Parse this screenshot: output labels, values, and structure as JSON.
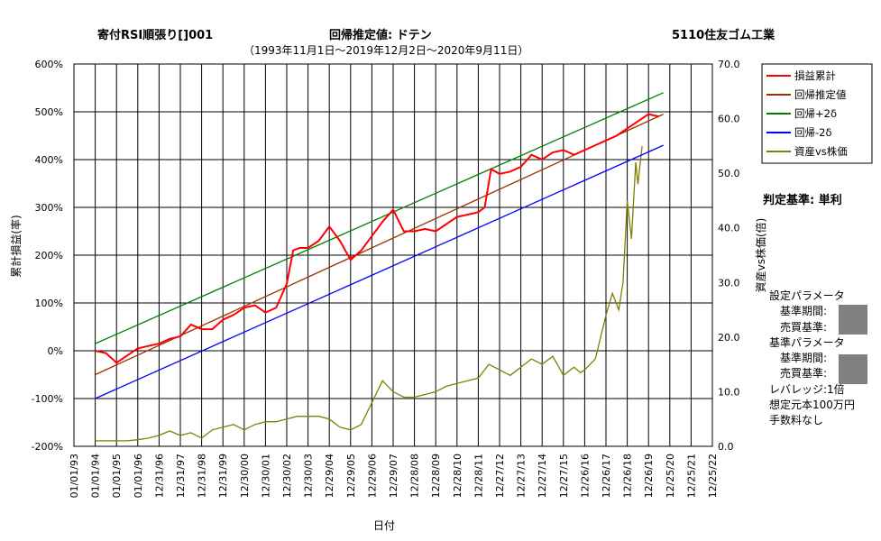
{
  "header": {
    "title_left": "寄付RSI順張り[]001",
    "title_center": "回帰推定値: ドテン",
    "title_right": "5110住友ゴム工業",
    "subtitle": "（1993年11月1日～2019年12月2日～2020年9月11日）"
  },
  "side_panel": {
    "judge": "判定基準: 単利",
    "setting_params": "設定パラメータ",
    "base_period_1": "基準期間:",
    "trade_base_1": "売買基準:",
    "base_params": "基準パラメータ",
    "base_period_2": "基準期間:",
    "trade_base_2": "売買基準:",
    "leverage": "レバレッジ:1倍",
    "principal": "想定元本100万円",
    "fee": "手数料なし"
  },
  "chart_data": {
    "type": "line",
    "xlabel": "日付",
    "ylabel_left": "累計損益(率)",
    "ylabel_right": "資産vs株価(倍)",
    "y_left_ticks": [
      "600%",
      "500%",
      "400%",
      "300%",
      "200%",
      "100%",
      "0%",
      "-100%",
      "-200%"
    ],
    "y_left_range": [
      -200,
      600
    ],
    "y_right_ticks": [
      "70.0",
      "60.0",
      "50.0",
      "40.0",
      "30.0",
      "20.0",
      "10.0",
      "0.0"
    ],
    "y_right_range": [
      0,
      70
    ],
    "x_ticks": [
      "01/01/93",
      "01/01/94",
      "01/01/95",
      "01/01/96",
      "12/31/96",
      "12/31/97",
      "12/31/98",
      "12/31/99",
      "12/30/00",
      "12/30/01",
      "12/30/02",
      "12/30/03",
      "12/29/04",
      "12/29/05",
      "12/29/06",
      "12/29/07",
      "12/28/08",
      "12/28/09",
      "12/28/10",
      "12/28/11",
      "12/27/12",
      "12/27/13",
      "12/27/14",
      "12/27/15",
      "12/26/16",
      "12/26/17",
      "12/26/18",
      "12/26/19",
      "12/25/20",
      "12/25/21",
      "12/25/22"
    ],
    "grid": true,
    "legend_position": "top-right",
    "series": [
      {
        "name": "損益累計",
        "color": "#ff0000",
        "points": [
          [
            1994.0,
            0
          ],
          [
            1994.5,
            -5
          ],
          [
            1995.0,
            -25
          ],
          [
            1995.5,
            -10
          ],
          [
            1996.0,
            5
          ],
          [
            1996.5,
            10
          ],
          [
            1997.0,
            15
          ],
          [
            1997.5,
            25
          ],
          [
            1998.0,
            30
          ],
          [
            1998.5,
            55
          ],
          [
            1999.0,
            45
          ],
          [
            1999.5,
            45
          ],
          [
            2000.0,
            65
          ],
          [
            2000.5,
            75
          ],
          [
            2001.0,
            90
          ],
          [
            2001.5,
            95
          ],
          [
            2002.0,
            80
          ],
          [
            2002.5,
            90
          ],
          [
            2003.0,
            140
          ],
          [
            2003.3,
            210
          ],
          [
            2003.6,
            215
          ],
          [
            2004.0,
            215
          ],
          [
            2004.5,
            230
          ],
          [
            2005.0,
            260
          ],
          [
            2005.5,
            230
          ],
          [
            2006.0,
            190
          ],
          [
            2006.5,
            210
          ],
          [
            2007.0,
            240
          ],
          [
            2007.5,
            270
          ],
          [
            2008.0,
            295
          ],
          [
            2008.5,
            250
          ],
          [
            2009.0,
            250
          ],
          [
            2009.5,
            255
          ],
          [
            2010.0,
            250
          ],
          [
            2010.5,
            265
          ],
          [
            2011.0,
            280
          ],
          [
            2011.5,
            285
          ],
          [
            2012.0,
            290
          ],
          [
            2012.3,
            300
          ],
          [
            2012.6,
            380
          ],
          [
            2013.0,
            370
          ],
          [
            2013.5,
            375
          ],
          [
            2014.0,
            385
          ],
          [
            2014.5,
            410
          ],
          [
            2015.0,
            400
          ],
          [
            2015.5,
            415
          ],
          [
            2016.0,
            420
          ],
          [
            2016.5,
            410
          ],
          [
            2017.0,
            420
          ],
          [
            2017.5,
            430
          ],
          [
            2018.0,
            440
          ],
          [
            2018.5,
            450
          ],
          [
            2019.0,
            465
          ],
          [
            2019.5,
            480
          ],
          [
            2020.0,
            495
          ],
          [
            2020.5,
            490
          ]
        ]
      },
      {
        "name": "回帰推定値",
        "color": "#993300",
        "points": [
          [
            1994.0,
            -50
          ],
          [
            2020.7,
            495
          ]
        ]
      },
      {
        "name": "回帰+2δ",
        "color": "#008000",
        "points": [
          [
            1994.0,
            15
          ],
          [
            2020.7,
            540
          ]
        ]
      },
      {
        "name": "回帰-2δ",
        "color": "#0000ff",
        "points": [
          [
            1994.0,
            -100
          ],
          [
            2020.7,
            430
          ]
        ]
      },
      {
        "name": "資産vs株価",
        "color": "#808000",
        "axis": "right",
        "points": [
          [
            1994.0,
            1.0
          ],
          [
            1994.5,
            1.0
          ],
          [
            1995.0,
            1.0
          ],
          [
            1995.5,
            1.0
          ],
          [
            1996.0,
            1.2
          ],
          [
            1996.5,
            1.5
          ],
          [
            1997.0,
            2.0
          ],
          [
            1997.5,
            2.8
          ],
          [
            1998.0,
            2.0
          ],
          [
            1998.5,
            2.5
          ],
          [
            1999.0,
            1.5
          ],
          [
            1999.5,
            3.0
          ],
          [
            2000.0,
            3.5
          ],
          [
            2000.5,
            4.0
          ],
          [
            2001.0,
            3.0
          ],
          [
            2001.5,
            4.0
          ],
          [
            2002.0,
            4.5
          ],
          [
            2002.5,
            4.5
          ],
          [
            2003.0,
            5.0
          ],
          [
            2003.5,
            5.5
          ],
          [
            2004.0,
            5.5
          ],
          [
            2004.5,
            5.5
          ],
          [
            2005.0,
            5.0
          ],
          [
            2005.5,
            3.5
          ],
          [
            2006.0,
            3.0
          ],
          [
            2006.5,
            4.0
          ],
          [
            2007.0,
            8.0
          ],
          [
            2007.5,
            12.0
          ],
          [
            2008.0,
            10.0
          ],
          [
            2008.5,
            9.0
          ],
          [
            2009.0,
            9.0
          ],
          [
            2009.5,
            9.5
          ],
          [
            2010.0,
            10.0
          ],
          [
            2010.5,
            11.0
          ],
          [
            2011.0,
            11.5
          ],
          [
            2011.5,
            12.0
          ],
          [
            2012.0,
            12.5
          ],
          [
            2012.5,
            15.0
          ],
          [
            2013.0,
            14.0
          ],
          [
            2013.5,
            13.0
          ],
          [
            2014.0,
            14.5
          ],
          [
            2014.5,
            16.0
          ],
          [
            2015.0,
            15.0
          ],
          [
            2015.5,
            16.5
          ],
          [
            2016.0,
            13.0
          ],
          [
            2016.5,
            14.5
          ],
          [
            2016.8,
            13.5
          ],
          [
            2017.0,
            14.0
          ],
          [
            2017.5,
            16.0
          ],
          [
            2018.0,
            24.0
          ],
          [
            2018.3,
            28.0
          ],
          [
            2018.6,
            25.0
          ],
          [
            2018.8,
            30.0
          ],
          [
            2019.0,
            45.0
          ],
          [
            2019.2,
            38.0
          ],
          [
            2019.4,
            52.0
          ],
          [
            2019.5,
            48.0
          ],
          [
            2019.7,
            55.0
          ]
        ]
      }
    ]
  }
}
